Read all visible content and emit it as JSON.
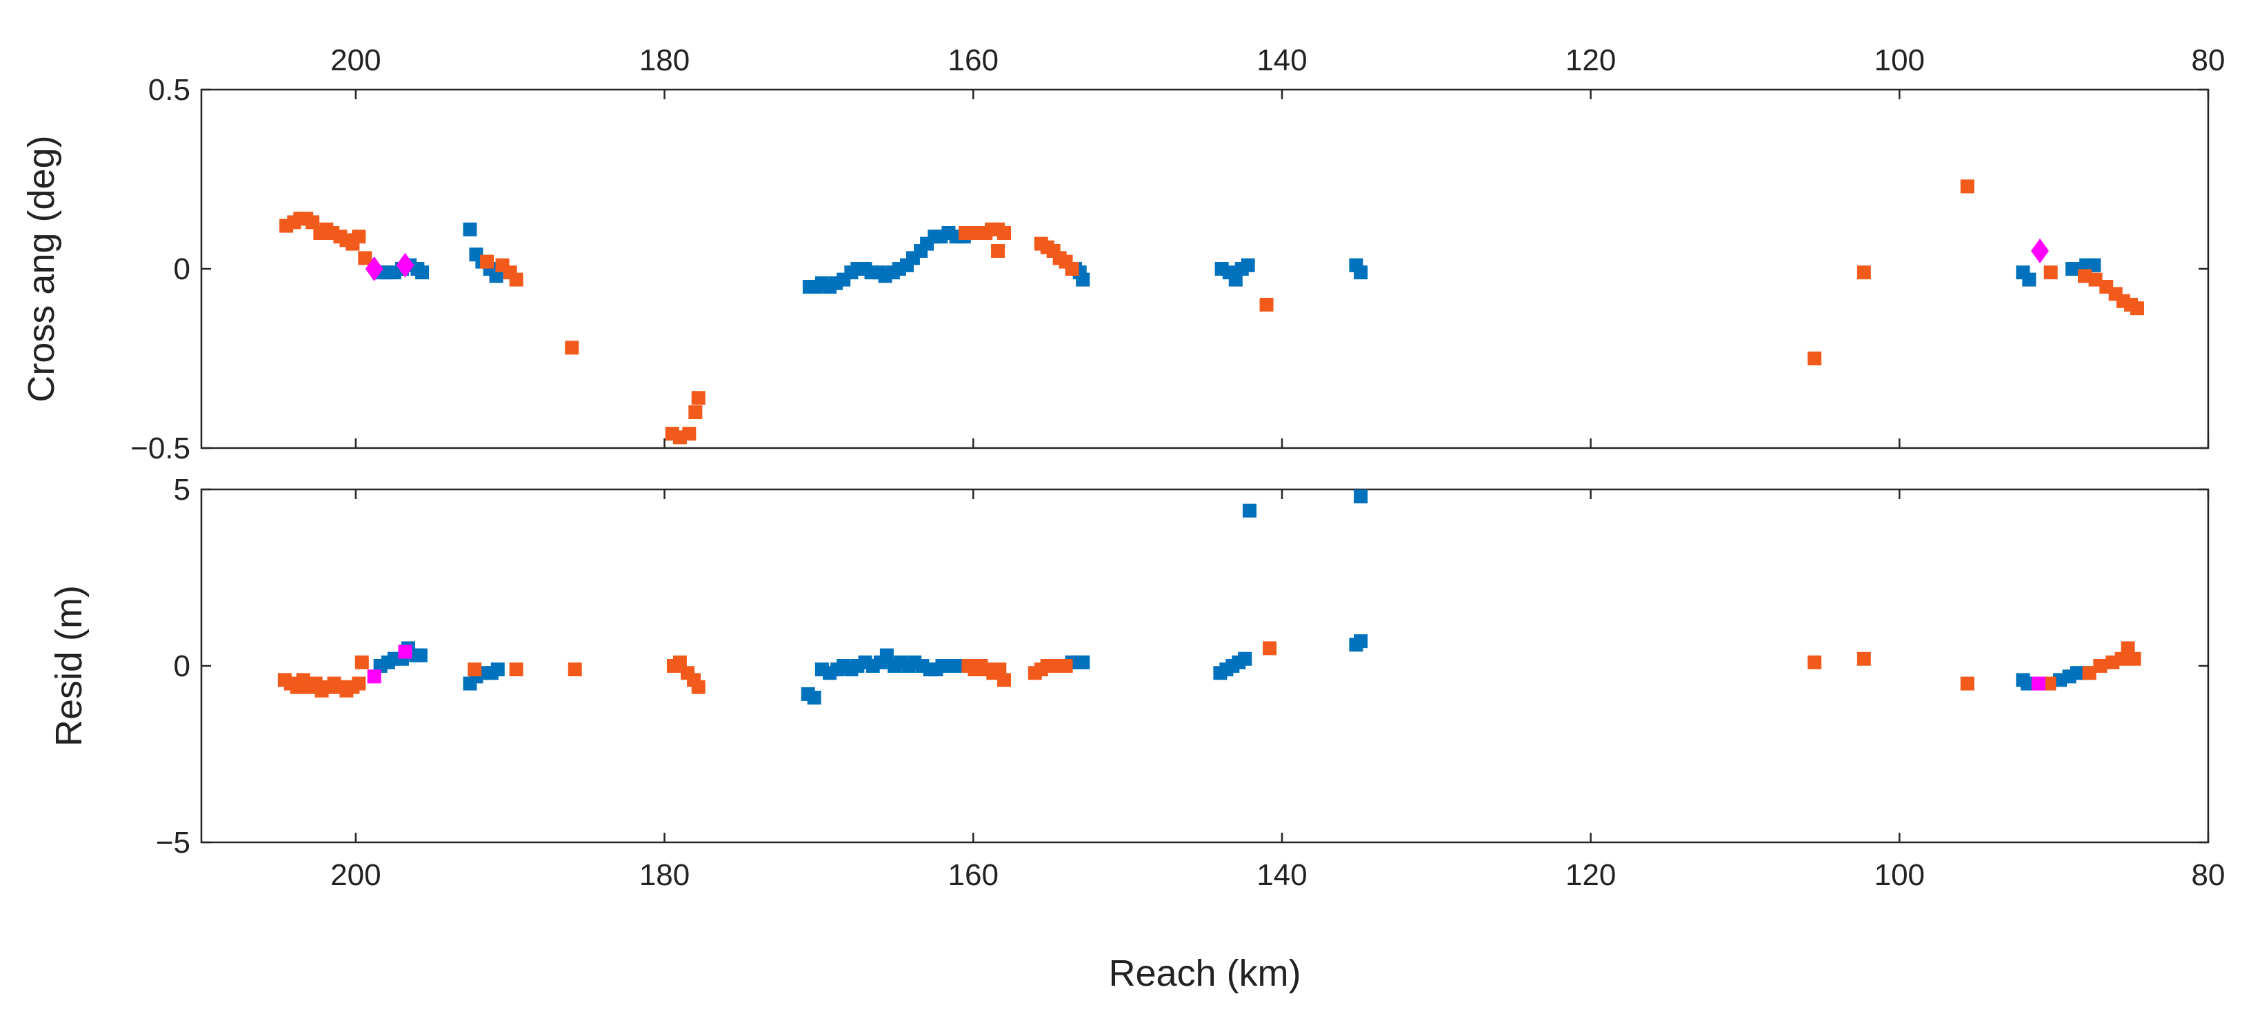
{
  "colors": {
    "series_a": "#0072BD",
    "series_b": "#F25A1B",
    "series_c": "#FF00FF",
    "axis": "#262626"
  },
  "chart_data": [
    {
      "type": "scatter",
      "panel": "top",
      "ylabel": "Cross ang (deg)",
      "xlabel": "",
      "x_reversed": true,
      "xlim": [
        210,
        80
      ],
      "ylim": [
        -0.5,
        0.5
      ],
      "x_ticks": [
        200,
        180,
        160,
        140,
        120,
        100,
        80
      ],
      "x_tick_labels": [
        "200",
        "180",
        "160",
        "140",
        "120",
        "100",
        "80"
      ],
      "x_tick_position": "top",
      "y_ticks": [
        0.5,
        0,
        -0.5
      ],
      "y_tick_labels": [
        "0.5",
        "0",
        "−0.5"
      ],
      "series": [
        {
          "name": "blue",
          "color": "#0072BD",
          "marker": "square",
          "x": [
            198.5,
            198,
            197.5,
            197,
            196.5,
            196,
            195.7,
            192.6,
            192.2,
            191.8,
            191.3,
            190.9,
            170.6,
            170.2,
            169.8,
            169.3,
            168.9,
            168.4,
            167.9,
            167.5,
            167,
            166.6,
            166.1,
            165.7,
            165.2,
            164.8,
            164.3,
            163.9,
            163.4,
            163,
            162.5,
            162.1,
            161.6,
            161.1,
            160.6,
            153.4,
            153.1,
            152.9,
            143.9,
            143.4,
            143,
            142.6,
            142.2,
            135.2,
            134.9,
            92,
            91.6,
            88.8,
            88.3,
            87.9,
            87.4
          ],
          "y": [
            -0.01,
            -0.01,
            -0.01,
            0,
            0.01,
            0,
            -0.01,
            0.11,
            0.04,
            0.02,
            0,
            -0.02,
            -0.05,
            -0.05,
            -0.04,
            -0.05,
            -0.04,
            -0.03,
            -0.01,
            0,
            0,
            -0.01,
            -0.01,
            -0.02,
            -0.01,
            0,
            0.01,
            0.03,
            0.05,
            0.07,
            0.09,
            0.09,
            0.1,
            0.09,
            0.09,
            0,
            -0.01,
            -0.03,
            0,
            -0.01,
            -0.03,
            0,
            0.01,
            0.01,
            -0.01,
            -0.01,
            -0.03,
            0,
            0,
            0.01,
            0.01
          ]
        },
        {
          "name": "orange",
          "color": "#F25A1B",
          "marker": "square",
          "x": [
            204.5,
            204,
            203.6,
            203.2,
            202.8,
            202.3,
            201.9,
            201.5,
            201,
            200.6,
            200.2,
            199.8,
            199.4,
            191.5,
            190.5,
            190,
            189.6,
            186,
            179.5,
            179,
            178.4,
            178,
            177.8,
            160.5,
            160,
            159.6,
            159.2,
            158.8,
            158.4,
            158,
            158.4,
            155.6,
            155.2,
            154.8,
            154.4,
            154,
            153.6,
            141,
            105.5,
            102.3,
            95.6,
            90.2,
            88,
            87.3,
            86.6,
            86,
            85.5,
            85,
            84.6
          ],
          "y": [
            0.12,
            0.13,
            0.14,
            0.14,
            0.13,
            0.1,
            0.11,
            0.1,
            0.09,
            0.08,
            0.07,
            0.09,
            0.03,
            0.02,
            0.01,
            -0.01,
            -0.03,
            -0.22,
            -0.46,
            -0.47,
            -0.46,
            -0.4,
            -0.36,
            0.1,
            0.1,
            0.1,
            0.1,
            0.11,
            0.11,
            0.1,
            0.05,
            0.07,
            0.06,
            0.05,
            0.03,
            0.02,
            0,
            -0.1,
            -0.25,
            -0.01,
            0.23,
            -0.01,
            -0.02,
            -0.03,
            -0.05,
            -0.07,
            -0.09,
            -0.1,
            -0.11
          ]
        },
        {
          "name": "magenta",
          "color": "#FF00FF",
          "marker": "diamond",
          "x": [
            198.8,
            196.8,
            90.9
          ],
          "y": [
            0,
            0.01,
            0.05
          ]
        }
      ]
    },
    {
      "type": "scatter",
      "panel": "bottom",
      "ylabel": "Resid (m)",
      "xlabel": "Reach (km)",
      "x_reversed": true,
      "xlim": [
        210,
        80
      ],
      "ylim": [
        -5,
        5
      ],
      "x_ticks": [
        200,
        180,
        160,
        140,
        120,
        100,
        80
      ],
      "x_tick_labels": [
        "200",
        "180",
        "160",
        "140",
        "120",
        "100",
        "80"
      ],
      "x_tick_position": "bottom",
      "y_ticks": [
        5,
        0,
        -5
      ],
      "y_tick_labels": [
        "5",
        "0",
        "−5"
      ],
      "series": [
        {
          "name": "blue",
          "color": "#0072BD",
          "marker": "square",
          "x": [
            198.4,
            197.9,
            197.5,
            197,
            196.6,
            196.1,
            195.8,
            192.6,
            192.2,
            191.6,
            191.2,
            190.8,
            170.7,
            170.3,
            169.8,
            169.3,
            168.8,
            168.4,
            167.9,
            167.5,
            167,
            166.5,
            166,
            165.6,
            165.1,
            164.7,
            164.2,
            163.8,
            163.3,
            162.8,
            162.4,
            162,
            161.5,
            161,
            153.6,
            153.2,
            152.9,
            144,
            143.6,
            143.2,
            142.8,
            142.4,
            142.1,
            135.2,
            134.9,
            134.9,
            92,
            91.7,
            89.6,
            89,
            88.5,
            88
          ],
          "y": [
            0,
            0.1,
            0.2,
            0.2,
            0.5,
            0.3,
            0.3,
            -0.5,
            -0.3,
            -0.2,
            -0.2,
            -0.1,
            -0.8,
            -0.9,
            -0.1,
            -0.2,
            -0.1,
            0,
            -0.1,
            0,
            0.1,
            0,
            0.1,
            0.3,
            0,
            0.1,
            0,
            0.1,
            0,
            -0.1,
            -0.1,
            0,
            0,
            0,
            0.1,
            0.1,
            0.1,
            -0.2,
            -0.1,
            0,
            0.1,
            0.2,
            4.4,
            0.6,
            0.7,
            4.8,
            -0.4,
            -0.5,
            -0.4,
            -0.3,
            -0.2,
            -0.2
          ]
        },
        {
          "name": "orange",
          "color": "#F25A1B",
          "marker": "square",
          "x": [
            204.6,
            204.2,
            203.8,
            203.4,
            203,
            202.6,
            202.2,
            201.8,
            201.4,
            201,
            200.6,
            200.2,
            199.8,
            199.6,
            192.3,
            189.6,
            185.8,
            179.4,
            179,
            178.5,
            178.1,
            177.8,
            160.3,
            159.9,
            159.5,
            159.1,
            158.7,
            158.3,
            158,
            156,
            155.6,
            155.2,
            154.8,
            154.4,
            154,
            140.8,
            105.5,
            102.3,
            95.6,
            90.3,
            87.7,
            87,
            86.2,
            85.6,
            85.2,
            84.8
          ],
          "y": [
            -0.4,
            -0.5,
            -0.6,
            -0.4,
            -0.6,
            -0.5,
            -0.7,
            -0.6,
            -0.5,
            -0.6,
            -0.7,
            -0.6,
            -0.5,
            0.1,
            -0.1,
            -0.1,
            -0.1,
            0,
            0.1,
            -0.2,
            -0.4,
            -0.6,
            0,
            -0.1,
            0,
            -0.1,
            -0.2,
            -0.1,
            -0.4,
            -0.2,
            -0.1,
            0,
            0,
            0,
            0,
            0.5,
            0.1,
            0.2,
            -0.5,
            -0.5,
            -0.2,
            0,
            0.1,
            0.2,
            0.5,
            0.2
          ]
        },
        {
          "name": "magenta",
          "color": "#FF00FF",
          "marker": "square",
          "x": [
            198.8,
            196.8,
            91
          ],
          "y": [
            -0.3,
            0.4,
            -0.5
          ]
        }
      ]
    }
  ]
}
